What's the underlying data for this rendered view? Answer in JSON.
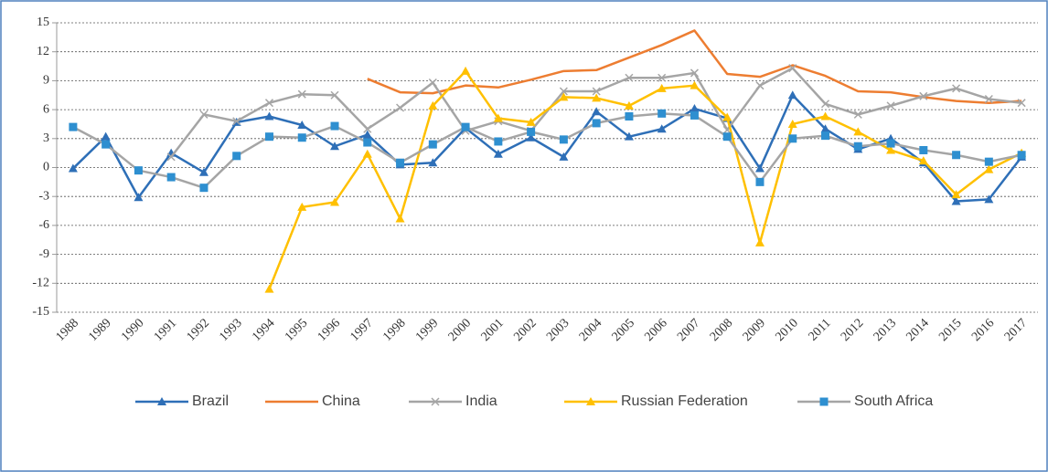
{
  "chart_data": {
    "type": "line",
    "categories": [
      "1988",
      "1989",
      "1990",
      "1991",
      "1992",
      "1993",
      "1994",
      "1995",
      "1996",
      "1997",
      "1998",
      "1999",
      "2000",
      "2001",
      "2002",
      "2003",
      "2004",
      "2005",
      "2006",
      "2007",
      "2008",
      "2009",
      "2010",
      "2011",
      "2012",
      "2013",
      "2014",
      "2015",
      "2016",
      "2017"
    ],
    "ylim": [
      -15,
      15
    ],
    "yticks": [
      -15,
      -12,
      -9,
      -6,
      -3,
      0,
      3,
      6,
      9,
      12,
      15
    ],
    "grid": true,
    "legend": "bottom",
    "series": [
      {
        "name": "Brazil",
        "color": "#2e6fb7",
        "marker": "triangle",
        "marker_color": "#2e6fb7",
        "values": [
          -0.1,
          3.2,
          -3.1,
          1.5,
          -0.5,
          4.7,
          5.3,
          4.4,
          2.2,
          3.4,
          0.3,
          0.5,
          4.1,
          1.4,
          3.1,
          1.1,
          5.8,
          3.2,
          4.0,
          6.1,
          5.1,
          -0.1,
          7.5,
          4.0,
          1.9,
          3.0,
          0.5,
          -3.5,
          -3.3,
          1.1
        ]
      },
      {
        "name": "China",
        "color": "#ed7d31",
        "marker": "none",
        "marker_color": "#ed7d31",
        "values": [
          null,
          null,
          null,
          null,
          null,
          null,
          null,
          null,
          null,
          9.2,
          7.8,
          7.7,
          8.5,
          8.3,
          9.1,
          10.0,
          10.1,
          11.4,
          12.7,
          14.2,
          9.7,
          9.4,
          10.6,
          9.5,
          7.9,
          7.8,
          7.3,
          6.9,
          6.7,
          6.9
        ]
      },
      {
        "name": "India",
        "color": "#a5a5a5",
        "marker": "x",
        "marker_color": "#a5a5a5",
        "values": [
          null,
          null,
          null,
          1.1,
          5.5,
          4.8,
          6.7,
          7.6,
          7.5,
          4.0,
          6.2,
          8.8,
          3.8,
          4.8,
          3.8,
          7.9,
          7.9,
          9.3,
          9.3,
          9.8,
          3.9,
          8.5,
          10.3,
          6.6,
          5.5,
          6.4,
          7.4,
          8.2,
          7.1,
          6.7
        ]
      },
      {
        "name": "Russian Federation",
        "color": "#ffc000",
        "marker": "triangle",
        "marker_color": "#ffc000",
        "values": [
          null,
          null,
          null,
          null,
          null,
          null,
          -12.6,
          -4.1,
          -3.6,
          1.4,
          -5.3,
          6.4,
          10.0,
          5.1,
          4.7,
          7.3,
          7.2,
          6.4,
          8.2,
          8.5,
          5.2,
          -7.8,
          4.5,
          5.3,
          3.7,
          1.8,
          0.7,
          -2.8,
          -0.2,
          1.5
        ]
      },
      {
        "name": "South Africa",
        "color": "#a5a5a5",
        "marker": "square",
        "marker_color": "#2e8fd0",
        "values": [
          4.2,
          2.4,
          -0.3,
          -1.0,
          -2.1,
          1.2,
          3.2,
          3.1,
          4.3,
          2.6,
          0.5,
          2.4,
          4.2,
          2.7,
          3.7,
          2.9,
          4.6,
          5.3,
          5.6,
          5.4,
          3.2,
          -1.5,
          3.0,
          3.3,
          2.2,
          2.5,
          1.8,
          1.3,
          0.6,
          1.3
        ]
      }
    ]
  }
}
